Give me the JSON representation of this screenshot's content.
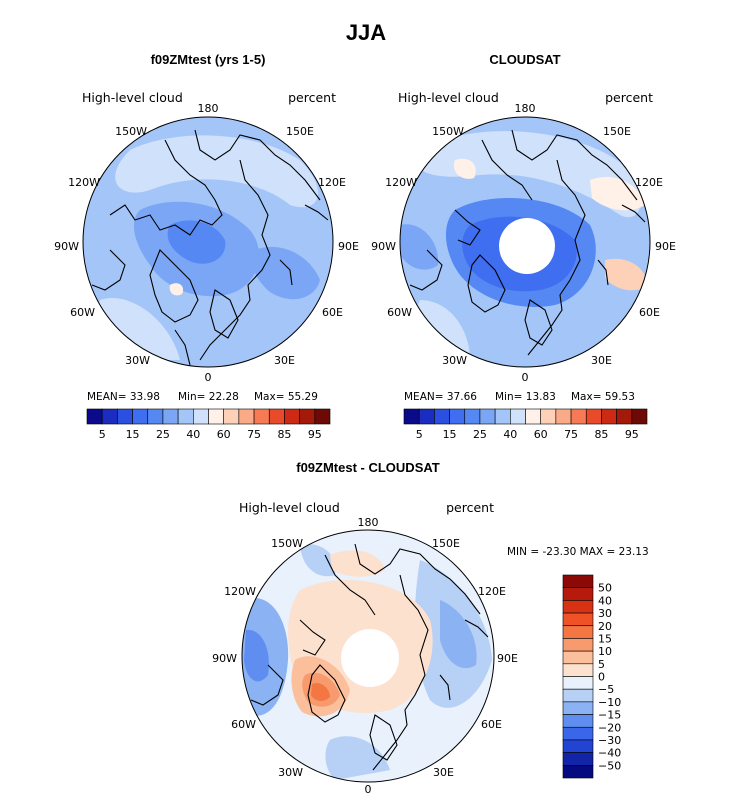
{
  "chart_data": [
    {
      "type": "heatmap",
      "id": "model",
      "title": "f09ZMtest (yrs 1-5)",
      "subtitle_left": "High-level cloud",
      "subtitle_right": "percent",
      "projection": "north polar stereographic",
      "lon_labels": [
        "180",
        "150E",
        "120E",
        "90E",
        "60E",
        "30E",
        "0",
        "30W",
        "60W",
        "90W",
        "120W",
        "150W"
      ],
      "stats": {
        "mean": "MEAN=  33.98",
        "min": "Min=  22.28",
        "max": "Max=  55.29"
      },
      "colorbar": {
        "levels": [
          5,
          10,
          15,
          20,
          25,
          30,
          40,
          50,
          60,
          70,
          75,
          80,
          85,
          90,
          95
        ],
        "tick_labels": [
          "5",
          "15",
          "25",
          "40",
          "60",
          "75",
          "85",
          "95"
        ],
        "colors": [
          "#0a0a8a",
          "#1a2dc0",
          "#2b4fe0",
          "#3f6ef0",
          "#5588f2",
          "#7aa6f5",
          "#a3c5f8",
          "#cfe1fb",
          "#fff0e8",
          "#fdd0b8",
          "#fbaa88",
          "#f57a55",
          "#e84a2a",
          "#cc2a15",
          "#a31a0a",
          "#6e0a05"
        ]
      }
    },
    {
      "type": "heatmap",
      "id": "obs",
      "title": "CLOUDSAT",
      "subtitle_left": "High-level cloud",
      "subtitle_right": "percent",
      "projection": "north polar stereographic",
      "lon_labels": [
        "180",
        "150E",
        "120E",
        "90E",
        "60E",
        "30E",
        "0",
        "30W",
        "60W",
        "90W",
        "120W",
        "150W"
      ],
      "stats": {
        "mean": "MEAN=  37.66",
        "min": "Min=  13.83",
        "max": "Max=  59.53"
      },
      "colorbar": {
        "levels": [
          5,
          10,
          15,
          20,
          25,
          30,
          40,
          50,
          60,
          70,
          75,
          80,
          85,
          90,
          95
        ],
        "tick_labels": [
          "5",
          "15",
          "25",
          "40",
          "60",
          "75",
          "85",
          "95"
        ],
        "colors": [
          "#0a0a8a",
          "#1a2dc0",
          "#2b4fe0",
          "#3f6ef0",
          "#5588f2",
          "#7aa6f5",
          "#a3c5f8",
          "#cfe1fb",
          "#fff0e8",
          "#fdd0b8",
          "#fbaa88",
          "#f57a55",
          "#e84a2a",
          "#cc2a15",
          "#a31a0a",
          "#6e0a05"
        ]
      }
    },
    {
      "type": "heatmap",
      "id": "diff",
      "title": "f09ZMtest - CLOUDSAT",
      "subtitle_left": "High-level cloud",
      "subtitle_right": "percent",
      "projection": "north polar stereographic",
      "lon_labels": [
        "180",
        "150E",
        "120E",
        "90E",
        "60E",
        "30E",
        "0",
        "30W",
        "60W",
        "90W",
        "120W",
        "150W"
      ],
      "stats": {
        "range": "MIN = -23.30 MAX =  23.13"
      },
      "colorbar": {
        "levels": [
          50,
          40,
          30,
          20,
          15,
          10,
          5,
          0,
          -5,
          -10,
          -15,
          -20,
          -30,
          -40,
          -50
        ],
        "tick_labels": [
          "50",
          "40",
          "30",
          "20",
          "15",
          "10",
          "5",
          "0",
          "−5",
          "−10",
          "−15",
          "−20",
          "−30",
          "−40",
          "−50"
        ],
        "colors": [
          "#8b0a08",
          "#b51a0c",
          "#d83215",
          "#ee5226",
          "#f37643",
          "#f79a6d",
          "#fbbf9c",
          "#fde1cf",
          "#e8f1fc",
          "#b6d0f6",
          "#8bb2f2",
          "#5f8ef0",
          "#3a66ea",
          "#2344d2",
          "#1224a8",
          "#060a80"
        ]
      }
    }
  ],
  "page": {
    "title": "JJA"
  }
}
